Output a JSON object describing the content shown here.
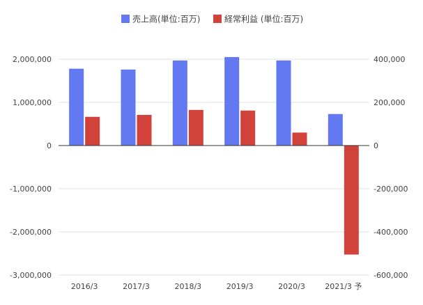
{
  "chart_data": {
    "type": "bar",
    "categories": [
      "2016/3",
      "2017/3",
      "2018/3",
      "2019/3",
      "2020/3",
      "2021/3 予"
    ],
    "series": [
      {
        "name": "売上高(単位:百万)",
        "axis": "left",
        "color": "#6279f2",
        "values": [
          1780000,
          1760000,
          1970000,
          2050000,
          1970000,
          730000
        ]
      },
      {
        "name": "経常利益 (単位:百万)",
        "axis": "right",
        "color": "#d0423a",
        "values": [
          133000,
          142000,
          165000,
          162000,
          60000,
          -505000
        ]
      }
    ],
    "y_left": {
      "ylim": [
        -3000000,
        2000000
      ],
      "ticks": [
        2000000,
        1000000,
        0,
        -1000000,
        -2000000,
        -3000000
      ],
      "tick_labels": [
        "2,000,000",
        "1,000,000",
        "0",
        "-1,000,000",
        "-2,000,000",
        "-3,000,000"
      ]
    },
    "y_right": {
      "ylim": [
        -600000,
        400000
      ],
      "ticks": [
        400000,
        200000,
        0,
        -200000,
        -400000,
        -600000
      ],
      "tick_labels": [
        "400,000",
        "200,000",
        "0",
        "-200,000",
        "-400,000",
        "-600,000"
      ]
    },
    "title": "",
    "xlabel": "",
    "grid": true,
    "legend_position": "top-center",
    "colors": {
      "grid": "#e0e0e0",
      "zero_line": "#333333",
      "text": "#444444"
    }
  }
}
